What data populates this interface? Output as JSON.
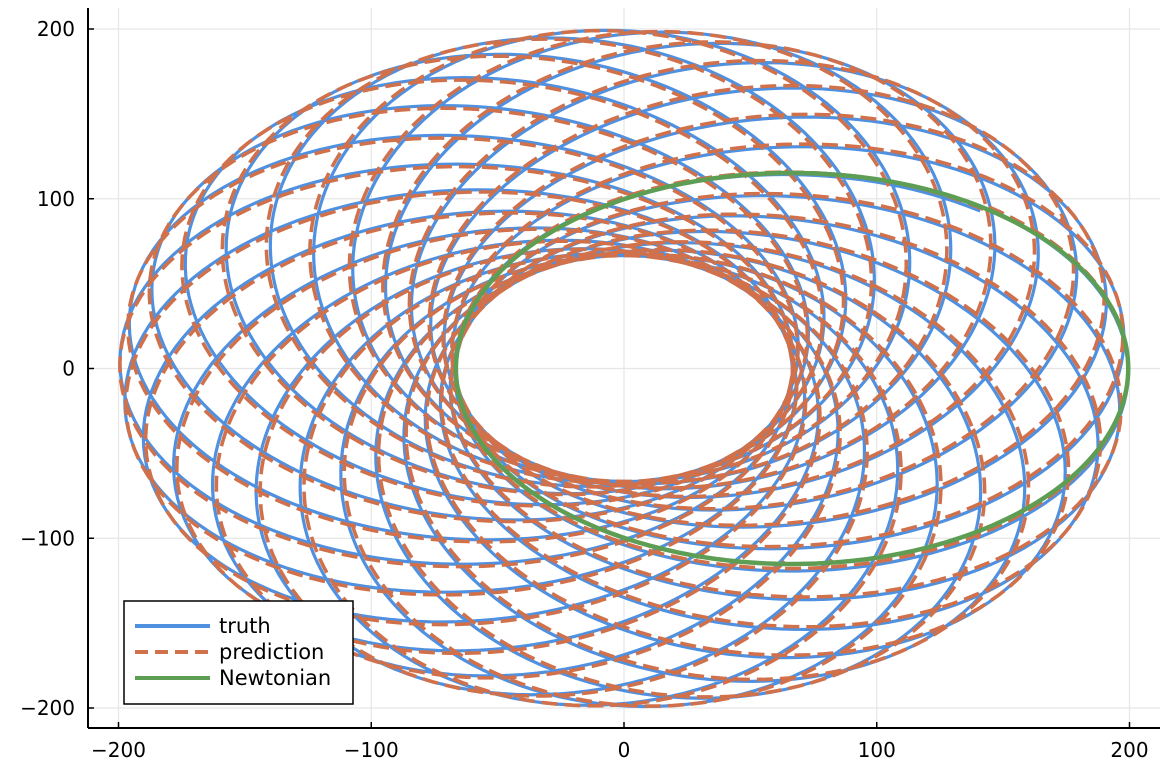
{
  "chart_data": {
    "type": "line",
    "title": "",
    "xlabel": "",
    "ylabel": "",
    "xlim": [
      -212,
      212
    ],
    "ylim": [
      -212,
      212
    ],
    "xticks": [
      -200,
      -100,
      0,
      100,
      200
    ],
    "yticks": [
      -200,
      -100,
      0,
      100,
      200
    ],
    "xtick_labels": [
      "−200",
      "−100",
      "0",
      "100",
      "200"
    ],
    "ytick_labels": [
      "−200",
      "−100",
      "0",
      "100",
      "200"
    ],
    "grid": true,
    "legend_position": "bottom-left",
    "series": [
      {
        "name": "truth",
        "color": "#4f91e0",
        "style": "solid",
        "description_values": {
          "kind": "precessing-ellipse",
          "semi_major": 133,
          "eccentricity": 0.5,
          "focus": [
            0,
            0
          ],
          "periapsis_radius": 66.5,
          "apoapsis_radius": 199.5,
          "precession_per_orbit_deg": 13.4,
          "orbits": 27,
          "start_point": [
            120,
            79
          ],
          "end_point": [
            120,
            79
          ]
        }
      },
      {
        "name": "prediction",
        "color": "#d0714b",
        "style": "dashed",
        "description_values": {
          "kind": "precessing-ellipse",
          "semi_major": 133,
          "eccentricity": 0.5,
          "focus": [
            0,
            0
          ],
          "periapsis_radius": 66.5,
          "apoapsis_radius": 199.5,
          "precession_per_orbit_deg": 13.4,
          "orbits": 27,
          "phase_offset_deg": 1.2
        }
      },
      {
        "name": "Newtonian",
        "color": "#5e9e54",
        "style": "solid",
        "description_values": {
          "kind": "ellipse",
          "semi_major": 133,
          "eccentricity": 0.5,
          "focus": [
            0,
            0
          ],
          "periapsis": [
            -66.5,
            0
          ],
          "apoapsis": [
            199.5,
            0
          ],
          "center": [
            66.5,
            0
          ],
          "semi_minor": 115.2
        }
      }
    ]
  }
}
